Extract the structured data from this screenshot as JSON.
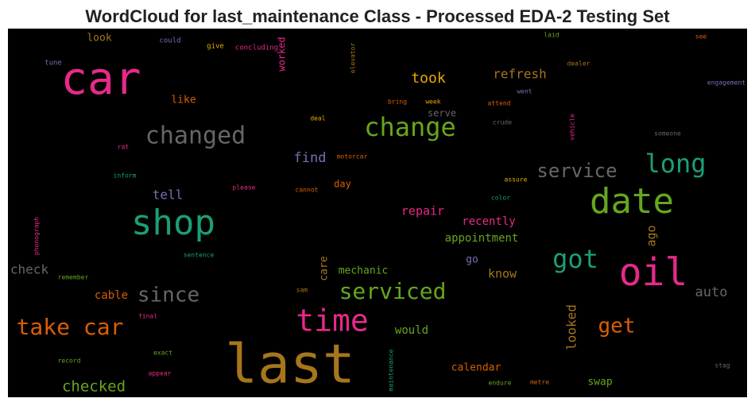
{
  "header": {
    "title": "WordCloud for last_maintenance Class - Processed EDA-2 Testing Set"
  },
  "words": [
    {
      "text": "car",
      "color": "#e7298a"
    },
    {
      "text": "last",
      "color": "#a6761d"
    },
    {
      "text": "shop",
      "color": "#1b9e77"
    },
    {
      "text": "date",
      "color": "#66a61e"
    },
    {
      "text": "oil",
      "color": "#e7298a"
    },
    {
      "text": "time",
      "color": "#e7298a"
    },
    {
      "text": "change",
      "color": "#66a61e"
    },
    {
      "text": "changed",
      "color": "#666666"
    },
    {
      "text": "long",
      "color": "#1b9e77"
    },
    {
      "text": "got",
      "color": "#1b9e77"
    },
    {
      "text": "serviced",
      "color": "#66a61e"
    },
    {
      "text": "take car",
      "color": "#d95f02"
    },
    {
      "text": "since",
      "color": "#666666"
    },
    {
      "text": "get",
      "color": "#d95f02"
    },
    {
      "text": "service",
      "color": "#666666"
    },
    {
      "text": "took",
      "color": "#e6ab02"
    },
    {
      "text": "refresh",
      "color": "#a6761d"
    },
    {
      "text": "find",
      "color": "#7570b3"
    },
    {
      "text": "tell",
      "color": "#7570b3"
    },
    {
      "text": "repair",
      "color": "#e7298a"
    },
    {
      "text": "recently",
      "color": "#e7298a"
    },
    {
      "text": "appointment",
      "color": "#66a61e"
    },
    {
      "text": "ago",
      "color": "#a6761d"
    },
    {
      "text": "check",
      "color": "#666666"
    },
    {
      "text": "cable",
      "color": "#d95f02"
    },
    {
      "text": "mechanic",
      "color": "#66a61e"
    },
    {
      "text": "care",
      "color": "#a6761d"
    },
    {
      "text": "go",
      "color": "#7570b3"
    },
    {
      "text": "know",
      "color": "#a6761d"
    },
    {
      "text": "auto",
      "color": "#666666"
    },
    {
      "text": "looked",
      "color": "#a6761d"
    },
    {
      "text": "would",
      "color": "#66a61e"
    },
    {
      "text": "calendar",
      "color": "#d95f02"
    },
    {
      "text": "swap",
      "color": "#66a61e"
    },
    {
      "text": "checked",
      "color": "#66a61e"
    },
    {
      "text": "like",
      "color": "#d95f02"
    },
    {
      "text": "look",
      "color": "#a6761d"
    },
    {
      "text": "day",
      "color": "#d95f02"
    },
    {
      "text": "serve",
      "color": "#666666"
    },
    {
      "text": "worked",
      "color": "#e7298a"
    },
    {
      "text": "could",
      "color": "#7570b3"
    },
    {
      "text": "give",
      "color": "#e6ab02"
    },
    {
      "text": "concluding",
      "color": "#e7298a"
    },
    {
      "text": "tune",
      "color": "#7570b3"
    },
    {
      "text": "elevator",
      "color": "#a6761d"
    },
    {
      "text": "laid",
      "color": "#66a61e"
    },
    {
      "text": "see",
      "color": "#d95f02"
    },
    {
      "text": "dealer",
      "color": "#a6761d"
    },
    {
      "text": "engagement",
      "color": "#7570b3"
    },
    {
      "text": "went",
      "color": "#7570b3"
    },
    {
      "text": "attend",
      "color": "#d95f02"
    },
    {
      "text": "week",
      "color": "#e6ab02"
    },
    {
      "text": "bring",
      "color": "#d95f02"
    },
    {
      "text": "deal",
      "color": "#e6ab02"
    },
    {
      "text": "crude",
      "color": "#666666"
    },
    {
      "text": "vehicle",
      "color": "#e7298a"
    },
    {
      "text": "someone",
      "color": "#666666"
    },
    {
      "text": "rat",
      "color": "#e7298a"
    },
    {
      "text": "motorcar",
      "color": "#d95f02"
    },
    {
      "text": "inform",
      "color": "#1b9e77"
    },
    {
      "text": "please",
      "color": "#e7298a"
    },
    {
      "text": "cannot",
      "color": "#d95f02"
    },
    {
      "text": "assure",
      "color": "#e6ab02"
    },
    {
      "text": "color",
      "color": "#1b9e77"
    },
    {
      "text": "phonograph",
      "color": "#e7298a"
    },
    {
      "text": "sentence",
      "color": "#1b9e77"
    },
    {
      "text": "remember",
      "color": "#66a61e"
    },
    {
      "text": "sam",
      "color": "#a6761d"
    },
    {
      "text": "final",
      "color": "#e7298a"
    },
    {
      "text": "exact",
      "color": "#66a61e"
    },
    {
      "text": "record",
      "color": "#66a61e"
    },
    {
      "text": "appear",
      "color": "#e7298a"
    },
    {
      "text": "maintenance",
      "color": "#1b9e77"
    },
    {
      "text": "endure",
      "color": "#66a61e"
    },
    {
      "text": "metre",
      "color": "#d95f02"
    },
    {
      "text": "stag",
      "color": "#666666"
    }
  ]
}
